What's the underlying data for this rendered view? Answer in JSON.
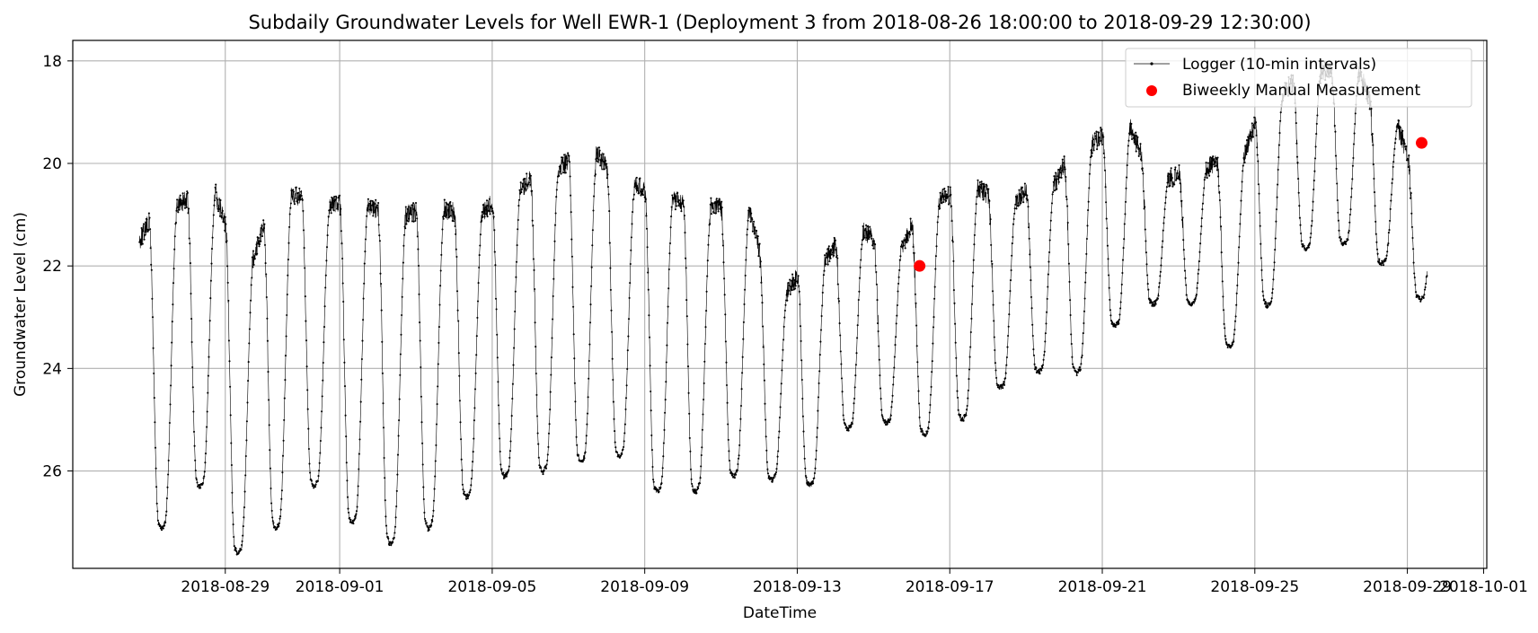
{
  "chart_data": {
    "type": "line",
    "title": "Subdaily Groundwater Levels for Well EWR-1 (Deployment 3 from 2018-08-26 18:00:00 to 2018-09-29 12:30:00)",
    "xlabel": "DateTime",
    "ylabel": "Groundwater Level (cm)",
    "x_range": [
      "2018-08-25 00:00",
      "2018-10-01 02:00"
    ],
    "ylim": [
      27.9,
      17.6
    ],
    "y_inverted": true,
    "grid": true,
    "legend_position": "upper right",
    "x_ticks": [
      "2018-08-29",
      "2018-09-01",
      "2018-09-05",
      "2018-09-09",
      "2018-09-13",
      "2018-09-17",
      "2018-09-21",
      "2018-09-25",
      "2018-09-29",
      "2018-10-01"
    ],
    "y_ticks": [
      18,
      20,
      22,
      24,
      26
    ],
    "series": [
      {
        "name": "Logger (10-min intervals)",
        "kind": "line-with-markers",
        "color": "#000000",
        "sampling_interval_minutes": 10,
        "start": "2018-08-26 18:00",
        "end": "2018-09-29 12:30",
        "daily_envelope": [
          {
            "date": "2018-08-26",
            "peak": 21.5,
            "trough": 26.6
          },
          {
            "date": "2018-08-27",
            "peak": 20.8,
            "trough": 27.0
          },
          {
            "date": "2018-08-28",
            "peak": 20.6,
            "trough": 26.2
          },
          {
            "date": "2018-08-29",
            "peak": 21.8,
            "trough": 27.5
          },
          {
            "date": "2018-08-30",
            "peak": 20.6,
            "trough": 27.0
          },
          {
            "date": "2018-08-31",
            "peak": 20.8,
            "trough": 26.2
          },
          {
            "date": "2018-09-01",
            "peak": 20.8,
            "trough": 26.9
          },
          {
            "date": "2018-09-02",
            "peak": 21.0,
            "trough": 27.3
          },
          {
            "date": "2018-09-03",
            "peak": 20.9,
            "trough": 27.0
          },
          {
            "date": "2018-09-04",
            "peak": 21.0,
            "trough": 26.4
          },
          {
            "date": "2018-09-05",
            "peak": 20.5,
            "trough": 26.0
          },
          {
            "date": "2018-09-06",
            "peak": 20.1,
            "trough": 25.9
          },
          {
            "date": "2018-09-07",
            "peak": 19.8,
            "trough": 25.7
          },
          {
            "date": "2018-09-08",
            "peak": 20.4,
            "trough": 25.6
          },
          {
            "date": "2018-09-09",
            "peak": 20.7,
            "trough": 26.3
          },
          {
            "date": "2018-09-10",
            "peak": 20.8,
            "trough": 26.3
          },
          {
            "date": "2018-09-11",
            "peak": 20.9,
            "trough": 26.0
          },
          {
            "date": "2018-09-12",
            "peak": 22.5,
            "trough": 26.1
          },
          {
            "date": "2018-09-13",
            "peak": 21.9,
            "trough": 26.2
          },
          {
            "date": "2018-09-14",
            "peak": 21.3,
            "trough": 25.1
          },
          {
            "date": "2018-09-15",
            "peak": 21.7,
            "trough": 25.0
          },
          {
            "date": "2018-09-16",
            "peak": 20.7,
            "trough": 25.2
          },
          {
            "date": "2018-09-17",
            "peak": 20.5,
            "trough": 24.9
          },
          {
            "date": "2018-09-18",
            "peak": 20.7,
            "trough": 24.3
          },
          {
            "date": "2018-09-19",
            "peak": 20.4,
            "trough": 24.0
          },
          {
            "date": "2018-09-20",
            "peak": 19.6,
            "trough": 24.0
          },
          {
            "date": "2018-09-21",
            "peak": 19.3,
            "trough": 23.1
          },
          {
            "date": "2018-09-22",
            "peak": 20.3,
            "trough": 22.7
          },
          {
            "date": "2018-09-23",
            "peak": 20.1,
            "trough": 22.7
          },
          {
            "date": "2018-09-24",
            "peak": 19.8,
            "trough": 23.5
          },
          {
            "date": "2018-09-25",
            "peak": 18.6,
            "trough": 22.7
          },
          {
            "date": "2018-09-26",
            "peak": 18.2,
            "trough": 21.6
          },
          {
            "date": "2018-09-27",
            "peak": 18.2,
            "trough": 21.5
          },
          {
            "date": "2018-09-28",
            "peak": 19.3,
            "trough": 21.9
          },
          {
            "date": "2018-09-29",
            "peak": 20.3,
            "trough": 22.6
          }
        ]
      },
      {
        "name": "Biweekly Manual Measurement",
        "kind": "scatter",
        "color": "#ff0000",
        "points": [
          {
            "x": "2018-09-16 05:00",
            "y": 22.0
          },
          {
            "x": "2018-09-29 09:00",
            "y": 19.6
          }
        ]
      }
    ]
  }
}
